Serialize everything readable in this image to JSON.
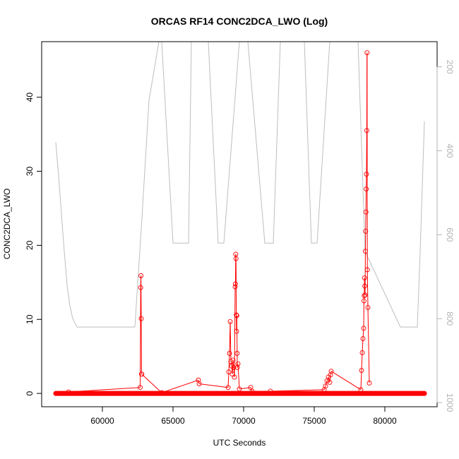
{
  "chart_data": {
    "type": "line",
    "title": "ORCAS RF14 CONC2DCA_LWO (Log)",
    "xlabel": "UTC Seconds",
    "ylabel": "CONC2DCA_LWO",
    "xlim": [
      55700,
      83700
    ],
    "ylim": [
      -1.8,
      47.5
    ],
    "x_ticks": [
      60000,
      65000,
      70000,
      75000,
      80000
    ],
    "y_ticks": [
      0,
      10,
      20,
      30,
      40
    ],
    "y2_ticks": [
      200,
      400,
      600,
      800,
      1000
    ],
    "y2_reversed": true,
    "y2_lim": [
      1010,
      140
    ],
    "colors": {
      "primary": "#ff0000",
      "secondary": "#bebebe",
      "axis": "#000000",
      "axis2": "#b3b3b3"
    },
    "series": [
      {
        "type": "line-points",
        "color": "#ff0000",
        "baseline": {
          "x_start": 56700,
          "x_end": 82800,
          "value": 0.0
        },
        "x": [
          57600,
          62680,
          62710,
          62730,
          62750,
          62770,
          62790,
          64200,
          66800,
          66850,
          68900,
          68950,
          69000,
          69050,
          69100,
          69150,
          69200,
          69250,
          69300,
          69350,
          69400,
          69420,
          69440,
          69460,
          69480,
          69500,
          69520,
          69540,
          69560,
          69600,
          69700,
          70500,
          70600,
          71900,
          75700,
          75800,
          75900,
          76000,
          76100,
          76150,
          76200,
          78300,
          78350,
          78400,
          78450,
          78500,
          78520,
          78540,
          78560,
          78580,
          78600,
          78620,
          78640,
          78660,
          78680,
          78700,
          78720,
          78740,
          78760,
          78800,
          78900
        ],
        "values": [
          0.2,
          0.8,
          14.3,
          15.9,
          10.1,
          2.6,
          2.6,
          0.1,
          1.8,
          1.3,
          0.8,
          2.9,
          5.4,
          9.7,
          4.3,
          3.7,
          2.6,
          4.5,
          3.5,
          2.2,
          14.4,
          14.8,
          18.8,
          18.2,
          10.6,
          8.4,
          10.5,
          5.4,
          3.5,
          4.0,
          0.6,
          0.8,
          0.3,
          0.3,
          0.5,
          1.0,
          1.7,
          2.2,
          1.5,
          2.5,
          3.0,
          0.5,
          3.1,
          5.5,
          7.4,
          8.8,
          12.5,
          13.2,
          15.6,
          14.5,
          13.3,
          19.2,
          21.9,
          24.5,
          27.6,
          29.6,
          35.5,
          46.0,
          16.7,
          11.6,
          1.4
        ]
      },
      {
        "type": "line",
        "color": "#bebebe",
        "axis": "right",
        "x": [
          56700,
          56900,
          57100,
          57300,
          57500,
          57700,
          57900,
          58200,
          59000,
          60000,
          61000,
          62300,
          62800,
          63300,
          64000,
          64200,
          65000,
          65500,
          65600,
          66100,
          66300,
          67300,
          67500,
          68200,
          68600,
          69700,
          70300,
          71500,
          71800,
          72100,
          72600,
          73700,
          74300,
          74800,
          75200,
          76100,
          76500,
          77400,
          77700,
          78100,
          78600,
          81100,
          81500,
          82300,
          82500,
          82800
        ],
        "values": [
          380,
          460,
          550,
          640,
          720,
          770,
          800,
          820,
          820,
          820,
          820,
          820,
          560,
          280,
          140,
          140,
          620,
          620,
          620,
          620,
          140,
          140,
          140,
          620,
          620,
          140,
          140,
          620,
          620,
          620,
          140,
          140,
          140,
          620,
          620,
          140,
          140,
          140,
          140,
          140,
          640,
          820,
          820,
          820,
          640,
          330
        ]
      }
    ]
  }
}
